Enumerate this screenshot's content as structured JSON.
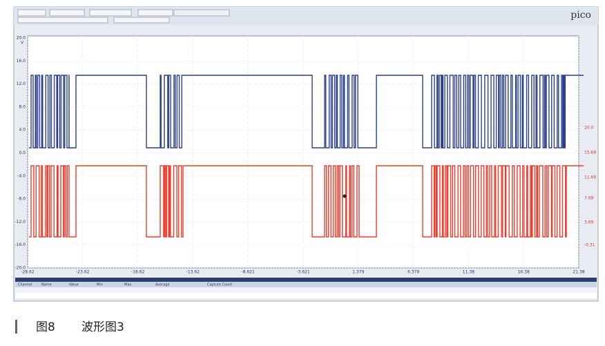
{
  "app": {
    "logo": "pico"
  },
  "axes": {
    "left_unit": "V",
    "left_ticks": [
      "20.0",
      "16.0",
      "12.0",
      "8.0",
      "4.0",
      "0.0",
      "-4.0",
      "-8.0",
      "-12.0",
      "-16.0",
      "-20.0"
    ],
    "right_ticks": [
      "20.0",
      "15.69",
      "11.69",
      "7.69",
      "3.69",
      "-0.31"
    ],
    "x_ticks": [
      "-28.62",
      "-23.62",
      "-18.62",
      "-13.62",
      "-8.621",
      "-3.621",
      "1.379",
      "6.379",
      "11.38",
      "16.38",
      "21.38"
    ]
  },
  "table": {
    "headers": [
      "Channel",
      "Name",
      "Value",
      "Min",
      "Max",
      "Average",
      "Capture Count"
    ]
  },
  "caption": {
    "figure": "图8",
    "title": "波形图3"
  }
}
